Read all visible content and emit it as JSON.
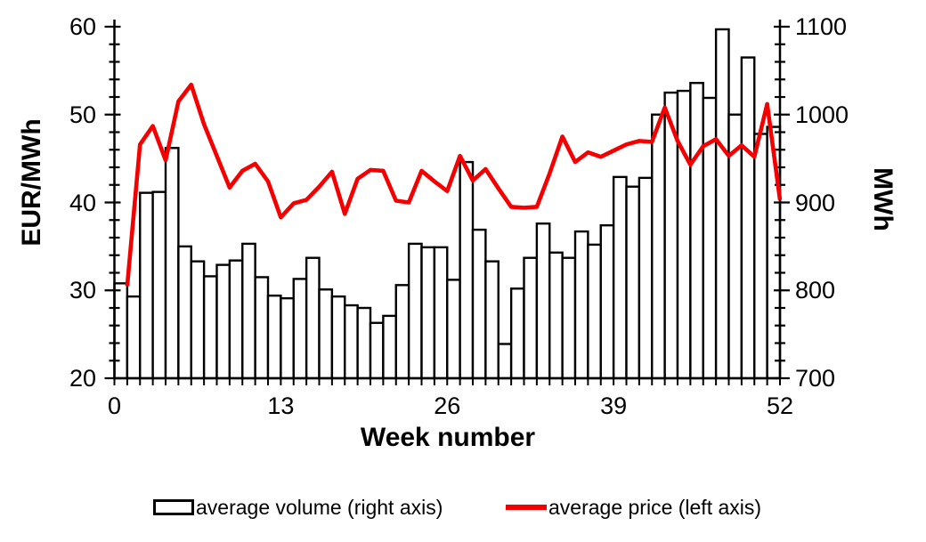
{
  "chart_data": {
    "type": "combo",
    "title": "",
    "grid": false,
    "legend_position": "bottom",
    "x": [
      1,
      2,
      3,
      4,
      5,
      6,
      7,
      8,
      9,
      10,
      11,
      12,
      13,
      14,
      15,
      16,
      17,
      18,
      19,
      20,
      21,
      22,
      23,
      24,
      25,
      26,
      27,
      28,
      29,
      30,
      31,
      32,
      33,
      34,
      35,
      36,
      37,
      38,
      39,
      40,
      41,
      42,
      43,
      44,
      45,
      46,
      47,
      48,
      49,
      50,
      51,
      52
    ],
    "series": [
      {
        "name": "average volume (right axis)",
        "type": "bar",
        "axis": "right",
        "stroke": "#000000",
        "fill": "#ffffff",
        "values": [
          808,
          793,
          911,
          912,
          962,
          850,
          833,
          816,
          829,
          834,
          853,
          815,
          794,
          791,
          813,
          837,
          801,
          793,
          783,
          780,
          763,
          771,
          806,
          853,
          849,
          849,
          812,
          946,
          869,
          833,
          739,
          802,
          837,
          876,
          843,
          837,
          867,
          852,
          874,
          929,
          918,
          928,
          1000,
          1025,
          1027,
          1036,
          1019,
          1097,
          1000,
          1065,
          978,
          986
        ]
      },
      {
        "name": "average price (left axis)",
        "type": "line",
        "axis": "left",
        "stroke": "#f40000",
        "values": [
          30.5,
          46.6,
          48.7,
          44.8,
          51.5,
          53.4,
          48.9,
          45.3,
          41.7,
          43.6,
          44.4,
          42.4,
          38.3,
          39.9,
          40.3,
          41.8,
          43.5,
          38.7,
          42.7,
          43.7,
          43.6,
          40.2,
          40.0,
          43.6,
          42.4,
          41.3,
          45.3,
          42.5,
          43.8,
          41.6,
          39.5,
          39.4,
          39.5,
          43.3,
          47.5,
          44.6,
          45.7,
          45.2,
          45.9,
          46.6,
          47.0,
          46.9,
          50.8,
          47.0,
          44.3,
          46.4,
          47.2,
          45.3,
          46.5,
          45.2,
          51.2,
          40.3
        ]
      }
    ],
    "left_axis": {
      "title": "EUR/MWh",
      "min": 20,
      "max": 60,
      "major_ticks": [
        20,
        30,
        40,
        50,
        60
      ],
      "minor_step": 2
    },
    "right_axis": {
      "title": "MWh",
      "min": 700,
      "max": 1100,
      "major_ticks": [
        700,
        800,
        900,
        1000,
        1100
      ],
      "minor_step": 20
    },
    "x_axis": {
      "title": "Week number",
      "min": 0,
      "max": 52,
      "tick_labels": [
        0,
        13,
        26,
        39,
        52
      ],
      "minor_step": 1
    },
    "axis_color": "#000000"
  }
}
